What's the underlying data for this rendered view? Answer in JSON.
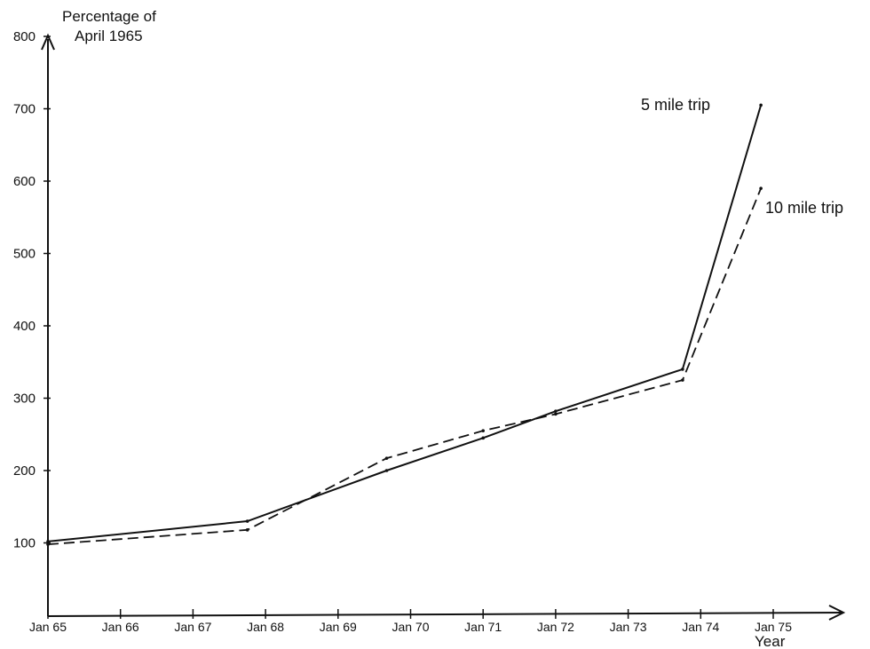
{
  "chart_data": {
    "type": "line",
    "ylabel_line1": "Percentage of",
    "ylabel_line2": "April 1965",
    "xlabel": "Year",
    "x_ticks": [
      "Jan 65",
      "Jan 66",
      "Jan 67",
      "Jan 68",
      "Jan 69",
      "Jan 70",
      "Jan 71",
      "Jan 72",
      "Jan 73",
      "Jan 74",
      "Jan 75"
    ],
    "y_ticks": [
      "100",
      "200",
      "300",
      "400",
      "500",
      "600",
      "700",
      "800"
    ],
    "ylim": [
      0,
      800
    ],
    "xlim": [
      1965,
      1975.6
    ],
    "grid": false,
    "series": [
      {
        "name": "5 mile trip",
        "style": "solid",
        "color": "#111111",
        "points": [
          {
            "x": 1965.0,
            "y": 102
          },
          {
            "x": 1967.75,
            "y": 130
          },
          {
            "x": 1969.67,
            "y": 200
          },
          {
            "x": 1971.0,
            "y": 245
          },
          {
            "x": 1972.0,
            "y": 282
          },
          {
            "x": 1973.75,
            "y": 340
          },
          {
            "x": 1974.83,
            "y": 705
          }
        ]
      },
      {
        "name": "10 mile trip",
        "style": "dashed",
        "color": "#111111",
        "points": [
          {
            "x": 1965.0,
            "y": 98
          },
          {
            "x": 1967.75,
            "y": 118
          },
          {
            "x": 1969.67,
            "y": 217
          },
          {
            "x": 1971.0,
            "y": 255
          },
          {
            "x": 1972.0,
            "y": 278
          },
          {
            "x": 1973.75,
            "y": 325
          },
          {
            "x": 1974.83,
            "y": 590
          }
        ]
      }
    ]
  }
}
